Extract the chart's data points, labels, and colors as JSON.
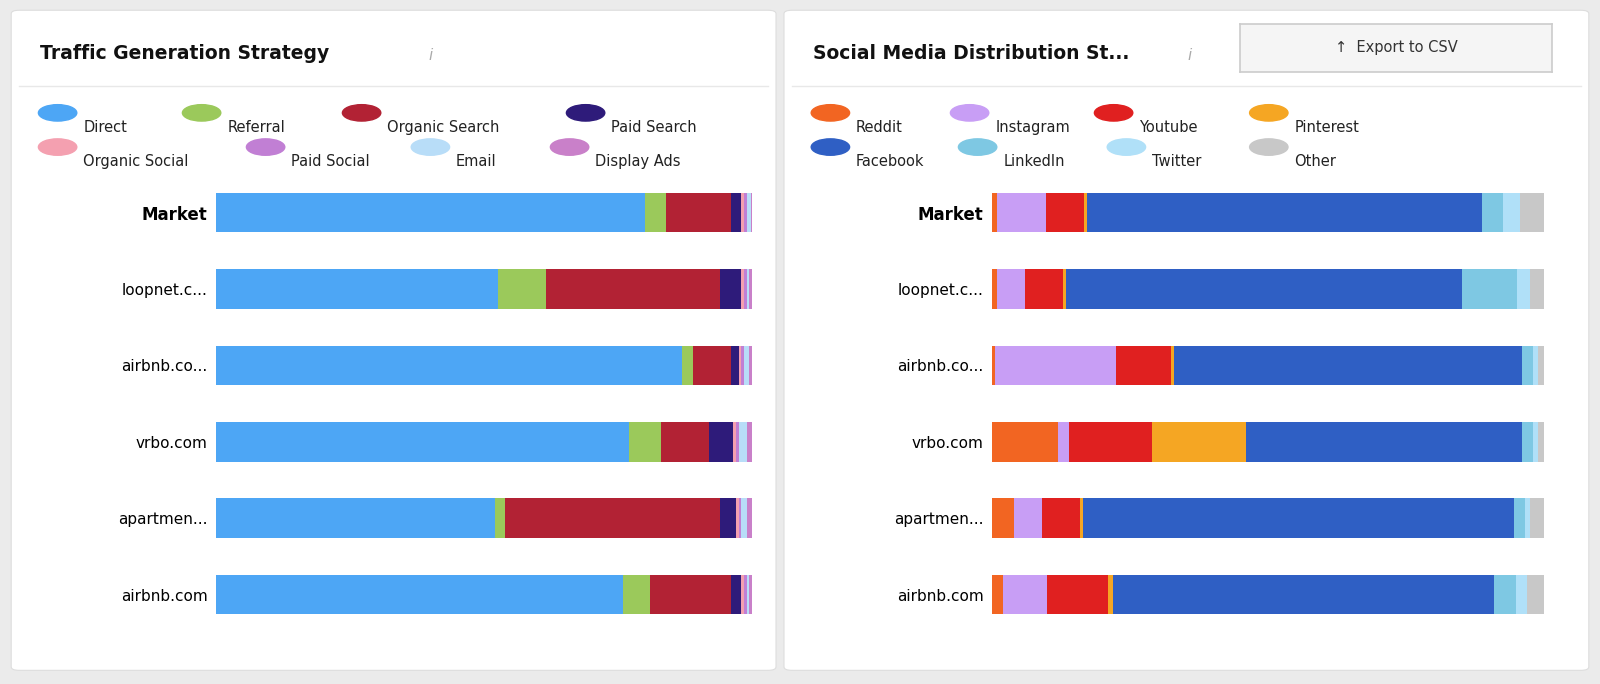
{
  "left_title": "Traffic Generation Strategy",
  "right_title": "Social Media Distribution St...",
  "export_button_text": "Export to CSV",
  "background_color": "#ebebeb",
  "panel_color": "#ffffff",
  "traffic_categories": [
    "Direct",
    "Referral",
    "Organic Search",
    "Paid Search",
    "Organic Social",
    "Paid Social",
    "Email",
    "Display Ads"
  ],
  "traffic_colors": [
    "#4da6f5",
    "#9bc95b",
    "#b22234",
    "#2e1b7a",
    "#f4a0b0",
    "#c17fd4",
    "#b8ddf8",
    "#c980c9"
  ],
  "traffic_rows": [
    "Market",
    "loopnet.c...",
    "airbnb.co...",
    "vrbo.com",
    "apartmen...",
    "airbnb.com"
  ],
  "traffic_data": [
    [
      0.8,
      0.04,
      0.12,
      0.02,
      0.005,
      0.005,
      0.008,
      0.002
    ],
    [
      0.52,
      0.09,
      0.32,
      0.04,
      0.005,
      0.005,
      0.005,
      0.005
    ],
    [
      0.87,
      0.02,
      0.07,
      0.015,
      0.005,
      0.005,
      0.01,
      0.005
    ],
    [
      0.77,
      0.06,
      0.09,
      0.045,
      0.005,
      0.005,
      0.015,
      0.01
    ],
    [
      0.52,
      0.02,
      0.4,
      0.03,
      0.005,
      0.005,
      0.01,
      0.01
    ],
    [
      0.76,
      0.05,
      0.15,
      0.02,
      0.005,
      0.005,
      0.005,
      0.005
    ]
  ],
  "social_categories": [
    "Reddit",
    "Instagram",
    "Youtube",
    "Pinterest",
    "Facebook",
    "LinkedIn",
    "Twitter",
    "Other"
  ],
  "social_colors": [
    "#f26522",
    "#c89ef5",
    "#e02020",
    "#f5a623",
    "#2f5fc4",
    "#7ec8e3",
    "#b0e0f8",
    "#c8c8c8"
  ],
  "social_rows": [
    "Market",
    "loopnet.c...",
    "airbnb.co...",
    "vrbo.com",
    "apartmen...",
    "airbnb.com"
  ],
  "social_data": [
    [
      0.01,
      0.09,
      0.07,
      0.005,
      0.73,
      0.04,
      0.03,
      0.045
    ],
    [
      0.01,
      0.05,
      0.07,
      0.005,
      0.72,
      0.1,
      0.025,
      0.025
    ],
    [
      0.005,
      0.22,
      0.1,
      0.005,
      0.63,
      0.02,
      0.01,
      0.01
    ],
    [
      0.12,
      0.02,
      0.15,
      0.17,
      0.5,
      0.02,
      0.01,
      0.01
    ],
    [
      0.04,
      0.05,
      0.07,
      0.005,
      0.78,
      0.02,
      0.01,
      0.025
    ],
    [
      0.02,
      0.08,
      0.11,
      0.01,
      0.69,
      0.04,
      0.02,
      0.03
    ]
  ]
}
